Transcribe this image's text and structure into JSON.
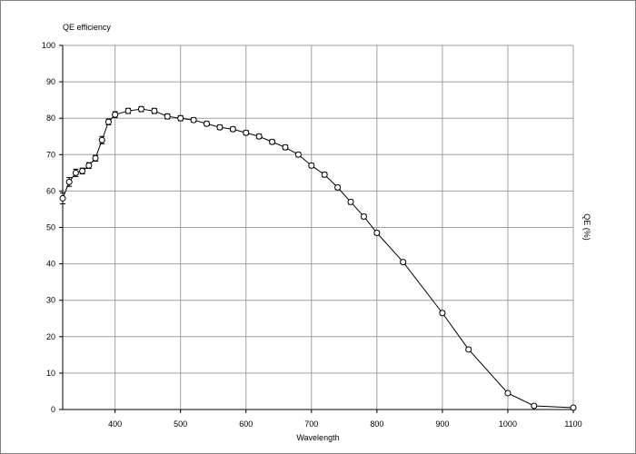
{
  "chart_data": {
    "type": "line",
    "title": "QE efficiency",
    "xlabel": "Wavelength",
    "ylabel": "QE (%)",
    "xlim": [
      320,
      1100
    ],
    "ylim": [
      0,
      100
    ],
    "x_ticks": [
      400,
      500,
      600,
      700,
      800,
      900,
      1000,
      1100
    ],
    "y_ticks": [
      0,
      10,
      20,
      30,
      40,
      50,
      60,
      70,
      80,
      90,
      100
    ],
    "grid": true,
    "series": [
      {
        "x": [
          320,
          330,
          340,
          350,
          360,
          370,
          380,
          390,
          400,
          420,
          440,
          460,
          480,
          500,
          520,
          540,
          560,
          580,
          600,
          620,
          640,
          660,
          680,
          700,
          720,
          740,
          760,
          780,
          800,
          840,
          900,
          940,
          1000,
          1040,
          1100
        ],
        "y": [
          58,
          62.5,
          65,
          65.5,
          67,
          69,
          74,
          79,
          81,
          82,
          82.5,
          82,
          80.5,
          80,
          79.5,
          78.5,
          77.5,
          77,
          76,
          75,
          73.5,
          72,
          70,
          67,
          64.5,
          61,
          57,
          53,
          48.5,
          40.5,
          26.5,
          16.5,
          4.5,
          1,
          0.5
        ],
        "err": [
          1.5,
          1.2,
          1,
          0.8,
          0.8,
          0.8,
          1,
          0.8,
          0.8,
          0.7,
          0.7,
          0.7,
          0.7,
          0.7,
          0.6,
          0.6,
          0.6,
          0.6,
          0.6,
          0.6,
          0.6,
          0.6,
          0.6,
          0.6,
          0.6,
          0.6,
          0.6,
          0.6,
          0.5,
          0.5,
          0.5,
          0.5,
          0.4,
          0.3,
          0.3
        ]
      }
    ],
    "colors": {
      "line": "#000000",
      "grid": "#a0a0a0",
      "axis": "#000000"
    }
  }
}
